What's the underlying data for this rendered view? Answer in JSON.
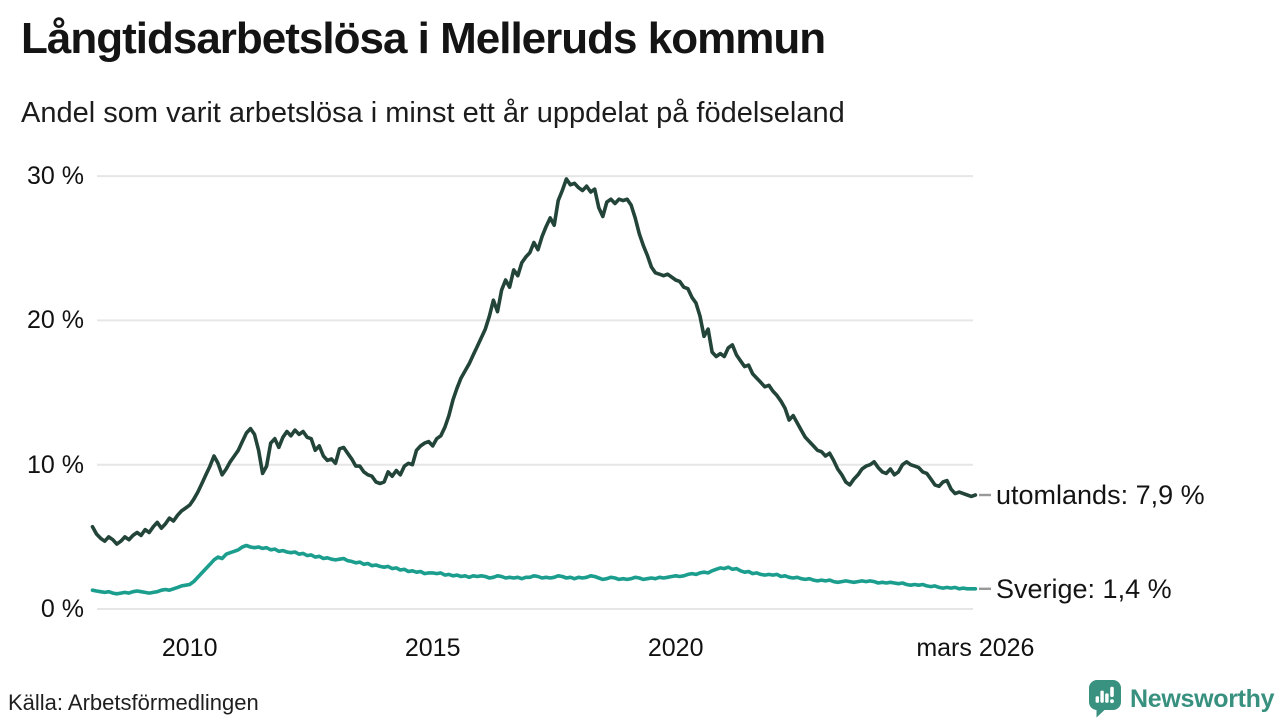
{
  "header": {
    "title": "Långtidsarbetslösa i Melleruds kommun",
    "subtitle": "Andel som varit arbetslösa i minst ett år uppdelat på födelseland"
  },
  "source": {
    "label": "Källa: Arbetsförmedlingen"
  },
  "branding": {
    "name": "Newsworthy",
    "icon": "newsworthy-chart-bubble-icon",
    "color": "#38907f"
  },
  "colors": {
    "series_utomlands": "#234439",
    "series_sverige": "#1b9e8e",
    "grid": "#e6e6e6",
    "leader_dash": "#999999",
    "text": "#1a1a1a"
  },
  "chart_data": {
    "type": "line",
    "title": "Långtidsarbetslösa i Melleruds kommun",
    "subtitle": "Andel som varit arbetslösa i minst ett år uppdelat på födelseland",
    "x_start": 2008.0,
    "x_step": 0.0833333,
    "x_end_label": "mars 2026",
    "xlabel": "",
    "ylabel": "",
    "ylim": [
      0,
      31
    ],
    "grid": "horizontal",
    "legend_position": "right-end-labels",
    "xticks": [
      {
        "x": 2010.0,
        "label": "2010"
      },
      {
        "x": 2015.0,
        "label": "2015"
      },
      {
        "x": 2020.0,
        "label": "2020"
      },
      {
        "x": 2026.1667,
        "label": "mars 2026"
      }
    ],
    "yticks": [
      {
        "v": 0,
        "label": "0 %"
      },
      {
        "v": 10,
        "label": "10 %"
      },
      {
        "v": 20,
        "label": "20 %"
      },
      {
        "v": 30,
        "label": "30 %"
      }
    ],
    "series": [
      {
        "name": "utomlands",
        "end_label": "utomlands: 7,9 %",
        "end_value_text": "7,9 %",
        "color": "#234439",
        "values": [
          5.7,
          5.2,
          4.9,
          4.7,
          5.0,
          4.8,
          4.5,
          4.7,
          5.0,
          4.8,
          5.1,
          5.3,
          5.1,
          5.5,
          5.3,
          5.7,
          6.0,
          5.6,
          5.9,
          6.3,
          6.1,
          6.5,
          6.8,
          7.0,
          7.2,
          7.6,
          8.1,
          8.7,
          9.3,
          9.9,
          10.6,
          10.1,
          9.3,
          9.7,
          10.2,
          10.6,
          11.0,
          11.6,
          12.2,
          12.5,
          12.1,
          11.0,
          9.4,
          9.9,
          11.5,
          11.8,
          11.2,
          11.9,
          12.3,
          12.0,
          12.4,
          12.1,
          12.3,
          11.9,
          11.8,
          11.0,
          11.3,
          10.6,
          10.3,
          10.4,
          10.1,
          11.1,
          11.2,
          10.8,
          10.4,
          9.9,
          9.9,
          9.5,
          9.3,
          9.2,
          8.8,
          8.7,
          8.8,
          9.5,
          9.2,
          9.6,
          9.3,
          9.9,
          10.1,
          10.0,
          11.0,
          11.3,
          11.5,
          11.6,
          11.3,
          11.8,
          12.0,
          12.6,
          13.4,
          14.5,
          15.3,
          16.0,
          16.5,
          17.0,
          17.6,
          18.2,
          18.8,
          19.4,
          20.3,
          21.4,
          20.6,
          22.1,
          22.8,
          22.3,
          23.5,
          23.1,
          24.0,
          24.4,
          24.7,
          25.4,
          24.9,
          25.8,
          26.5,
          27.1,
          26.6,
          28.3,
          29.0,
          29.8,
          29.4,
          29.5,
          29.2,
          29.0,
          29.3,
          28.9,
          29.1,
          27.8,
          27.2,
          28.2,
          28.4,
          28.1,
          28.4,
          28.3,
          28.4,
          28.0,
          27.1,
          26.0,
          25.2,
          24.5,
          23.7,
          23.3,
          23.2,
          23.1,
          23.2,
          23.0,
          22.8,
          22.7,
          22.3,
          22.2,
          21.6,
          21.2,
          20.3,
          18.9,
          19.4,
          17.8,
          17.5,
          17.7,
          17.5,
          18.1,
          18.3,
          17.6,
          17.2,
          16.8,
          16.9,
          16.3,
          16.0,
          15.7,
          15.4,
          15.5,
          15.1,
          14.8,
          14.4,
          13.9,
          13.1,
          13.4,
          12.9,
          12.4,
          11.9,
          11.6,
          11.3,
          11.0,
          10.9,
          10.6,
          10.8,
          10.3,
          9.7,
          9.3,
          8.8,
          8.6,
          9.0,
          9.3,
          9.7,
          9.9,
          10.0,
          10.2,
          9.8,
          9.5,
          9.4,
          9.7,
          9.3,
          9.5,
          10.0,
          10.2,
          10.0,
          9.9,
          9.8,
          9.5,
          9.4,
          9.0,
          8.6,
          8.5,
          8.8,
          8.9,
          8.3,
          8.0,
          8.1,
          8.0,
          7.9,
          7.8,
          7.9
        ]
      },
      {
        "name": "Sverige",
        "end_label": "Sverige: 1,4 %",
        "end_value_text": "1,4 %",
        "color": "#1b9e8e",
        "values": [
          1.3,
          1.25,
          1.2,
          1.15,
          1.2,
          1.1,
          1.05,
          1.1,
          1.15,
          1.1,
          1.2,
          1.25,
          1.2,
          1.15,
          1.1,
          1.15,
          1.2,
          1.3,
          1.35,
          1.3,
          1.4,
          1.5,
          1.6,
          1.65,
          1.7,
          1.9,
          2.2,
          2.5,
          2.8,
          3.1,
          3.4,
          3.6,
          3.5,
          3.8,
          3.9,
          4.0,
          4.1,
          4.3,
          4.4,
          4.3,
          4.25,
          4.3,
          4.2,
          4.25,
          4.1,
          4.15,
          4.0,
          4.05,
          3.95,
          3.9,
          3.95,
          3.8,
          3.85,
          3.7,
          3.75,
          3.6,
          3.65,
          3.5,
          3.55,
          3.45,
          3.4,
          3.45,
          3.5,
          3.35,
          3.3,
          3.2,
          3.25,
          3.1,
          3.15,
          3.0,
          3.05,
          2.95,
          2.9,
          2.95,
          2.8,
          2.85,
          2.7,
          2.75,
          2.6,
          2.65,
          2.55,
          2.6,
          2.45,
          2.5,
          2.5,
          2.45,
          2.5,
          2.35,
          2.4,
          2.3,
          2.35,
          2.25,
          2.3,
          2.2,
          2.3,
          2.25,
          2.3,
          2.25,
          2.15,
          2.2,
          2.3,
          2.25,
          2.15,
          2.2,
          2.15,
          2.2,
          2.1,
          2.2,
          2.2,
          2.3,
          2.25,
          2.15,
          2.2,
          2.15,
          2.2,
          2.3,
          2.25,
          2.15,
          2.2,
          2.1,
          2.2,
          2.15,
          2.2,
          2.3,
          2.25,
          2.15,
          2.05,
          2.1,
          2.2,
          2.15,
          2.05,
          2.1,
          2.05,
          2.1,
          2.2,
          2.15,
          2.05,
          2.1,
          2.15,
          2.1,
          2.2,
          2.15,
          2.2,
          2.25,
          2.3,
          2.25,
          2.3,
          2.4,
          2.45,
          2.4,
          2.5,
          2.55,
          2.5,
          2.65,
          2.75,
          2.85,
          2.8,
          2.9,
          2.75,
          2.8,
          2.65,
          2.55,
          2.6,
          2.45,
          2.5,
          2.4,
          2.35,
          2.4,
          2.35,
          2.4,
          2.25,
          2.3,
          2.2,
          2.15,
          2.2,
          2.1,
          2.05,
          2.1,
          2.0,
          1.95,
          2.0,
          1.95,
          2.0,
          1.9,
          1.85,
          1.9,
          1.95,
          1.9,
          1.85,
          1.9,
          1.95,
          1.9,
          1.95,
          1.9,
          1.8,
          1.85,
          1.8,
          1.85,
          1.8,
          1.75,
          1.8,
          1.7,
          1.65,
          1.7,
          1.65,
          1.7,
          1.6,
          1.55,
          1.6,
          1.5,
          1.45,
          1.5,
          1.45,
          1.5,
          1.4,
          1.45,
          1.4,
          1.4,
          1.4
        ]
      }
    ]
  }
}
